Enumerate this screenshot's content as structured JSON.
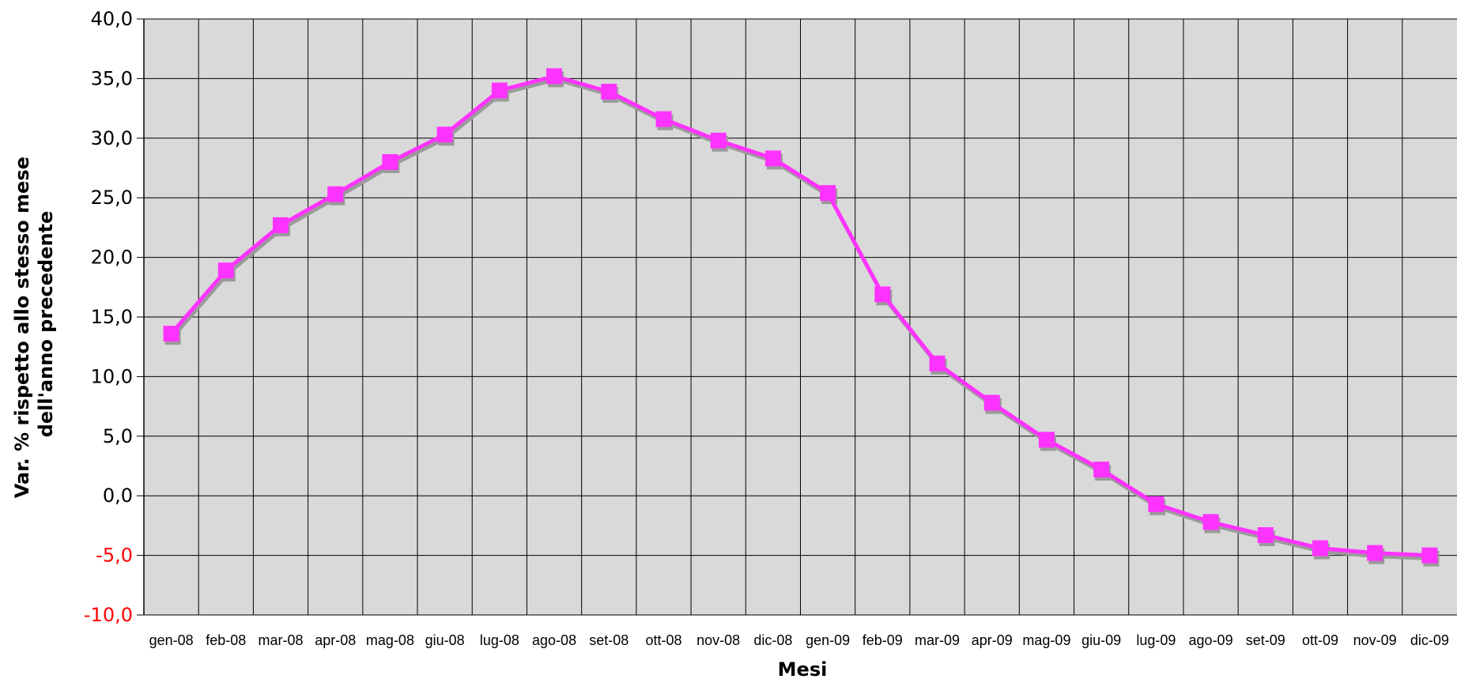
{
  "chart_data": {
    "type": "line",
    "title": "",
    "xlabel": "Mesi",
    "ylabel_lines": [
      "Var. % rispetto allo stesso mese",
      "dell'anno precedente"
    ],
    "categories": [
      "gen-08",
      "feb-08",
      "mar-08",
      "apr-08",
      "mag-08",
      "giu-08",
      "lug-08",
      "ago-08",
      "set-08",
      "ott-08",
      "nov-08",
      "dic-08",
      "gen-09",
      "feb-09",
      "mar-09",
      "apr-09",
      "mag-09",
      "giu-09",
      "lug-09",
      "ago-09",
      "set-09",
      "ott-09",
      "nov-09",
      "dic-09"
    ],
    "series": [
      {
        "values": [
          13.6,
          18.9,
          22.7,
          25.3,
          28.0,
          30.3,
          34.0,
          35.2,
          33.9,
          31.6,
          29.8,
          28.3,
          25.4,
          16.9,
          11.1,
          7.8,
          4.7,
          2.2,
          -0.7,
          -2.2,
          -3.3,
          -4.4,
          -4.8,
          -5.0
        ],
        "color": "#ff33ff",
        "marker": "square"
      }
    ],
    "ylim": [
      -10,
      40
    ],
    "yticks": [
      -10,
      -5,
      0,
      5,
      10,
      15,
      20,
      25,
      30,
      35,
      40
    ],
    "ytick_labels": [
      "-10,0",
      "-5,0",
      "0,0",
      "5,0",
      "10,0",
      "15,0",
      "20,0",
      "25,0",
      "30,0",
      "35,0",
      "40,0"
    ],
    "negative_tick_color": "#ff0000",
    "plot_background": "#d9d9d9",
    "grid": true,
    "legend": "none"
  }
}
